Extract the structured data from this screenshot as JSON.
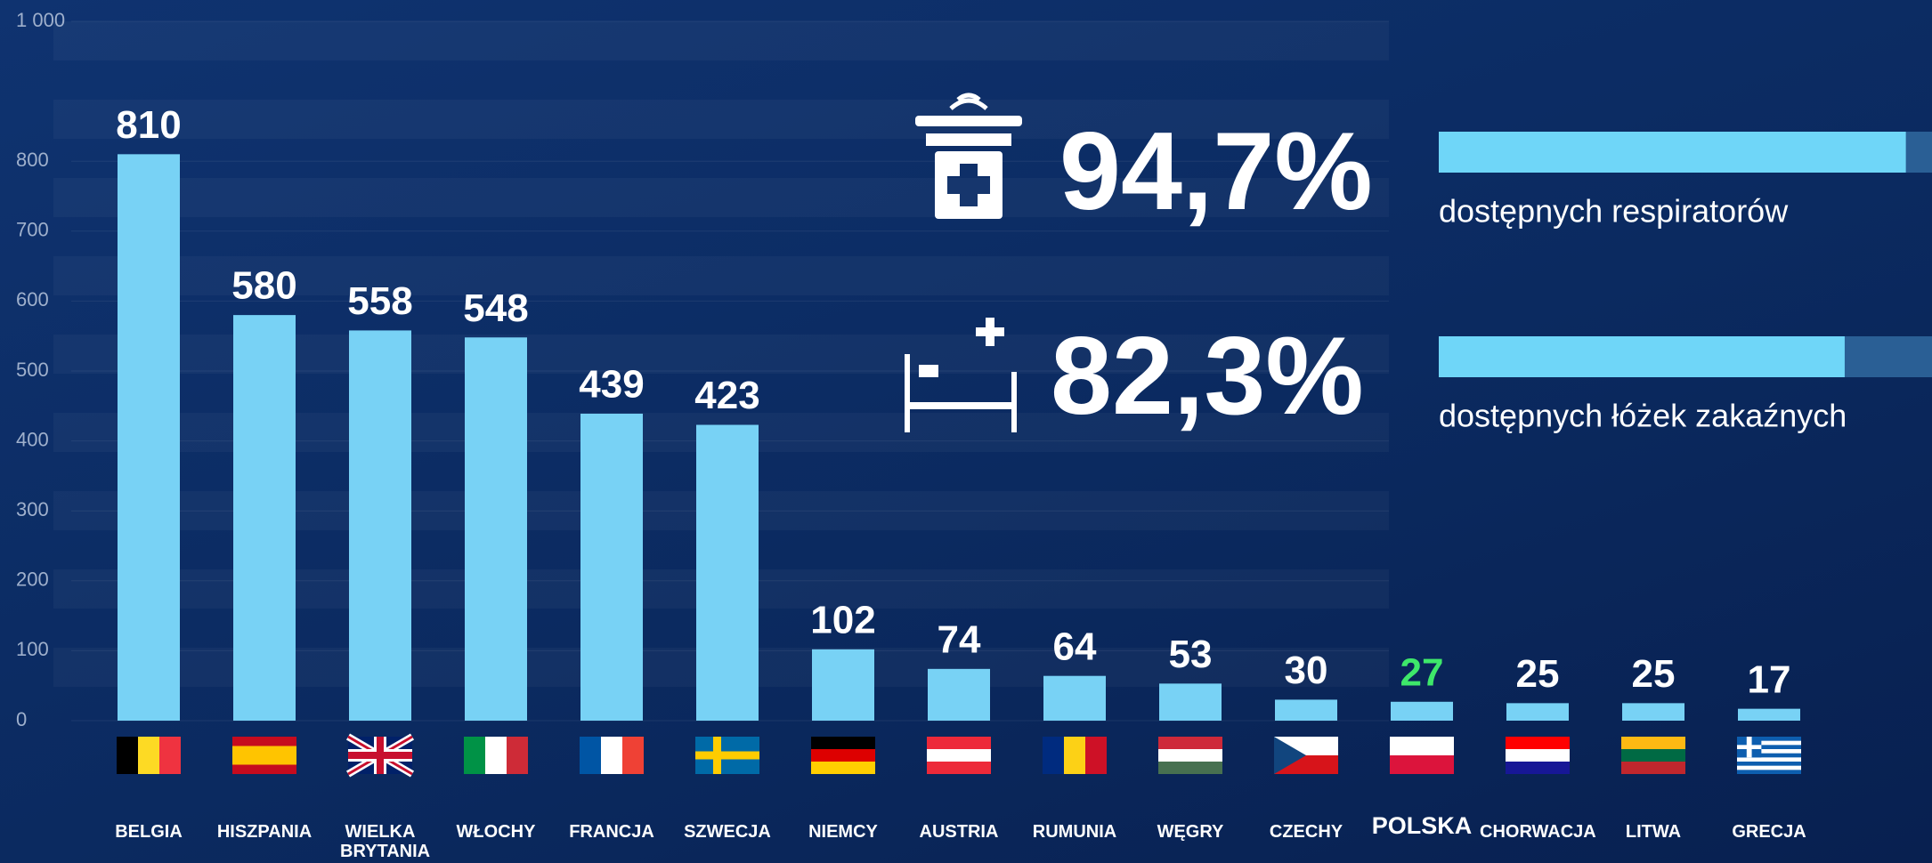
{
  "chart_data": {
    "type": "bar",
    "categories": [
      "BELGIA",
      "HISZPANIA",
      "WIELKA BRYTANIA",
      "WŁOCHY",
      "FRANCJA",
      "SZWECJA",
      "NIEMCY",
      "AUSTRIA",
      "RUMUNIA",
      "WĘGRY",
      "CZECHY",
      "POLSKA",
      "CHORWACJA",
      "LITWA",
      "GRECJA"
    ],
    "values": [
      810,
      580,
      558,
      548,
      439,
      423,
      102,
      74,
      64,
      53,
      30,
      27,
      25,
      25,
      17
    ],
    "color": "#78d2f5",
    "highlight": {
      "category": "POLSKA",
      "color": "#3ee86a"
    },
    "ylim": [
      0,
      1000
    ],
    "yticks": [
      0,
      100,
      200,
      300,
      400,
      500,
      600,
      700,
      800,
      {
        "value": 1000,
        "label": "1 000"
      }
    ],
    "grid": true
  },
  "stats": [
    {
      "value": 94.7,
      "value_label": "94,7%",
      "label": "dostępnych respiratorów"
    },
    {
      "value": 82.3,
      "value_label": "82,3%",
      "label": "dostępnych łóżek zakaźnych"
    }
  ]
}
